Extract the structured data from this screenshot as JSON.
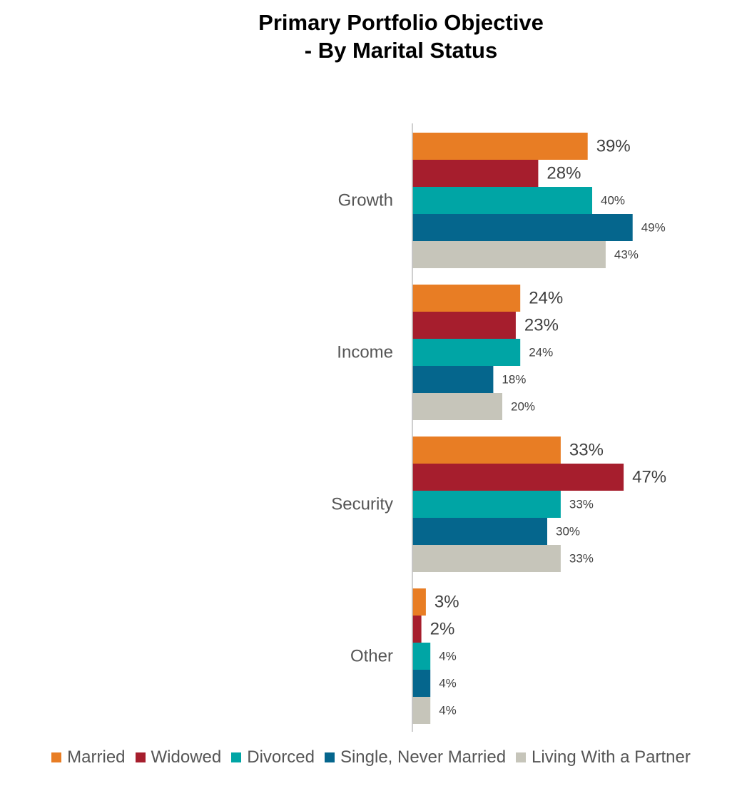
{
  "chart_data": {
    "type": "bar",
    "orientation": "horizontal",
    "title_lines": [
      "Primary Portfolio Objective",
      "- By Marital Status"
    ],
    "categories": [
      "Growth",
      "Income",
      "Security",
      "Other"
    ],
    "series": [
      {
        "name": "Married",
        "color": "#E87D24",
        "values": [
          39,
          24,
          33,
          3
        ],
        "labels": [
          "39%",
          "24%",
          "33%",
          "3%"
        ]
      },
      {
        "name": "Widowed",
        "color": "#A61E2D",
        "values": [
          28,
          23,
          47,
          2
        ],
        "labels": [
          "28%",
          "23%",
          "47%",
          "2%"
        ]
      },
      {
        "name": "Divorced",
        "color": "#00A5A5",
        "values": [
          40,
          24,
          33,
          4
        ],
        "labels": [
          "40%",
          "24%",
          "33%",
          "4%"
        ]
      },
      {
        "name": "Single, Never Married",
        "color": "#05668D",
        "values": [
          49,
          18,
          30,
          4
        ],
        "labels": [
          "49%",
          "18%",
          "30%",
          "4%"
        ]
      },
      {
        "name": "Living With a Partner",
        "color": "#C6C5BA",
        "values": [
          43,
          20,
          33,
          4
        ],
        "labels": [
          "43%",
          "20%",
          "33%",
          "4%"
        ]
      }
    ],
    "xlim": [
      0,
      50
    ],
    "grid": false,
    "legend_position": "bottom"
  }
}
